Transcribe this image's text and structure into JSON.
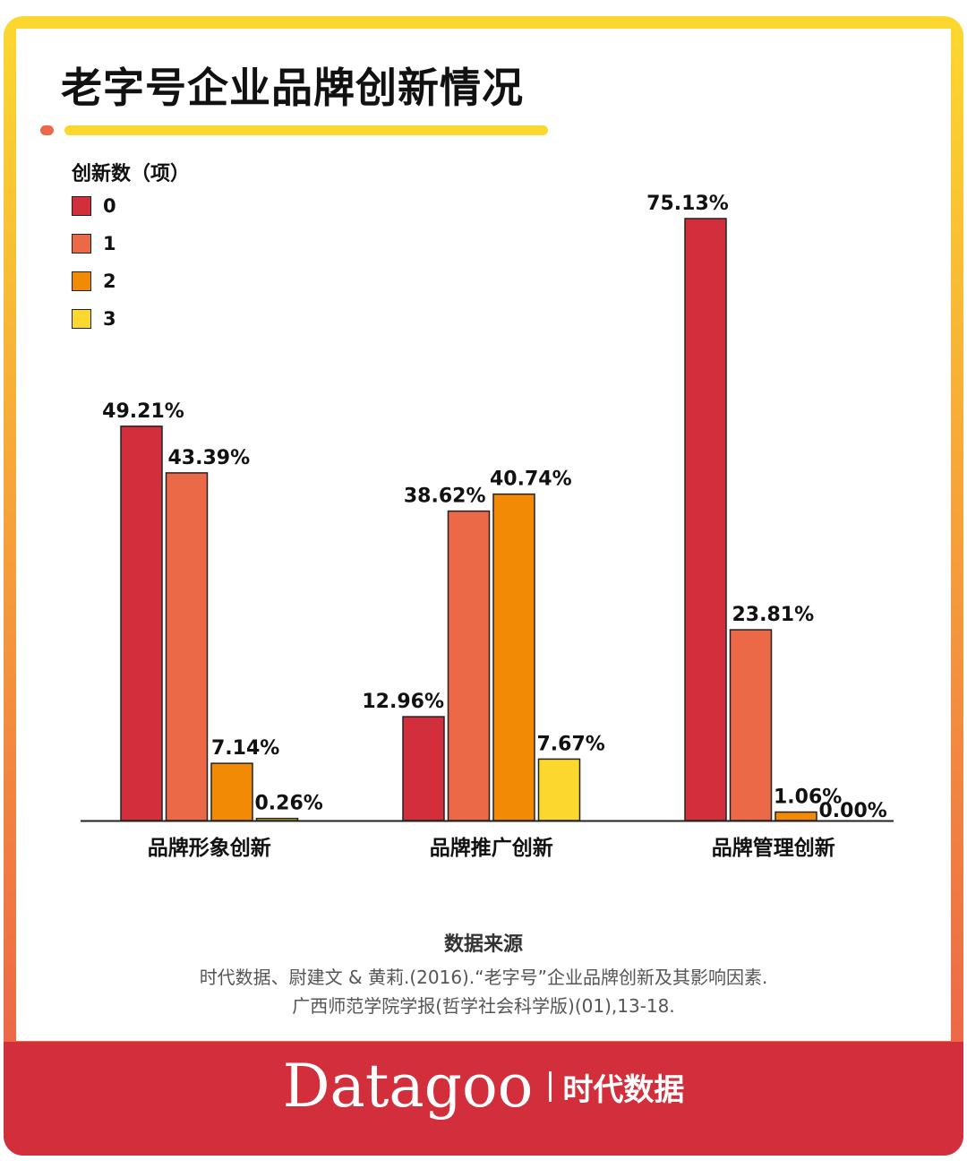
{
  "title": "老字号企业品牌创新情况",
  "legend": {
    "title": "创新数（项）",
    "items": [
      {
        "label": "0",
        "color": "#d22e3b"
      },
      {
        "label": "1",
        "color": "#ec6947"
      },
      {
        "label": "2",
        "color": "#f28a06"
      },
      {
        "label": "3",
        "color": "#fcd82f"
      }
    ]
  },
  "chart_data": {
    "type": "bar",
    "categories": [
      "品牌形象创新",
      "品牌推广创新",
      "品牌管理创新"
    ],
    "series": [
      {
        "name": "0",
        "values": [
          49.21,
          12.96,
          75.13
        ],
        "labels": [
          "49.21%",
          "12.96%",
          "75.13%"
        ]
      },
      {
        "name": "1",
        "values": [
          43.39,
          38.62,
          23.81
        ],
        "labels": [
          "43.39%",
          "38.62%",
          "23.81%"
        ]
      },
      {
        "name": "2",
        "values": [
          7.14,
          40.74,
          1.06
        ],
        "labels": [
          "7.14%",
          "40.74%",
          "1.06%"
        ]
      },
      {
        "name": "3",
        "values": [
          0.26,
          7.67,
          0.0
        ],
        "labels": [
          "0.26%",
          "7.67%",
          "0.00%"
        ]
      }
    ],
    "ylim": [
      0,
      80
    ],
    "grid": false,
    "legend_position": "top-left"
  },
  "source": {
    "title": "数据来源",
    "line1": "时代数据、尉建文 & 黄莉.(2016).“老字号”企业品牌创新及其影响因素.",
    "line2": "广西师范学院学报(哲学社会科学版)(01),13-18."
  },
  "brand": {
    "logo": "Datagoo",
    "name": "时代数据"
  }
}
